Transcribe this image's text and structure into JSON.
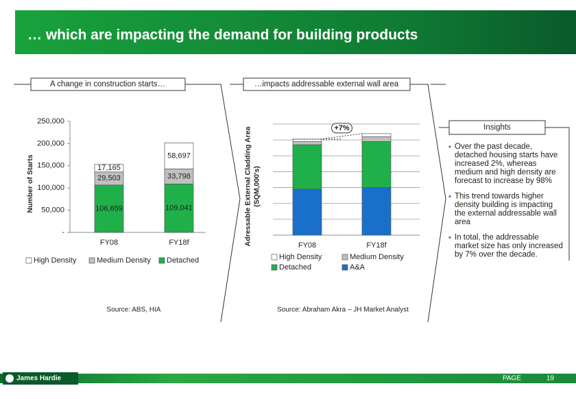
{
  "title": "… which are impacting the demand for building products",
  "panels": [
    "A change in construction starts…",
    "…impacts addressable external wall area"
  ],
  "sources": [
    "Source: ABS, HIA",
    "Source: Abraham Akra – JH Market Analyst"
  ],
  "insights": {
    "title": "Insights",
    "bullets": [
      [
        "Over the past decade,",
        "detached housing starts have",
        "increased 2%, whereas",
        "medium and high density are",
        "forecast to increase by 98%"
      ],
      [
        "This trend towards higher",
        "density building is impacting",
        "the external addressable wall",
        "area"
      ],
      [
        "In total, the addressable",
        "market size has only increased",
        "by 7% over the decade."
      ]
    ]
  },
  "footer": {
    "brand": "James Hardie",
    "page_label": "PAGE",
    "page_number": 19
  },
  "chart_data": [
    {
      "type": "bar",
      "stacked": true,
      "ylabel": [
        "Number of Starts"
      ],
      "categories": [
        "FY08",
        "FY18f"
      ],
      "series": [
        {
          "name": "High Density",
          "color": "#ffffff",
          "values": [
            17165,
            58697
          ],
          "value_labels": [
            "17,165",
            "58,697"
          ]
        },
        {
          "name": "Medium Density",
          "color": "#c0c0c0",
          "values": [
            29503,
            33798
          ],
          "value_labels": [
            "29,503",
            "33,798"
          ]
        },
        {
          "name": "Detached",
          "color": "#1fb04a",
          "values": [
            106659,
            109041
          ],
          "value_labels": [
            "106,659",
            "109,041"
          ]
        }
      ],
      "ylim": [
        0,
        250000
      ],
      "yticks": [
        {
          "value": 0,
          "label": "-"
        },
        {
          "value": 50000,
          "label": "50,000"
        },
        {
          "value": 100000,
          "label": "100,000"
        },
        {
          "value": 150000,
          "label": "150,000"
        },
        {
          "value": 200000,
          "label": "200,000"
        },
        {
          "value": 250000,
          "label": "250,000"
        }
      ],
      "grid": false
    },
    {
      "type": "bar",
      "stacked": true,
      "ylabel": [
        "Adressable External Cladding Area",
        "(SQM,000's)"
      ],
      "categories": [
        "FY08",
        "FY18f"
      ],
      "series": [
        {
          "name": "High Density",
          "color": "#ffffff",
          "values": [
            0.15,
            0.2
          ]
        },
        {
          "name": "Medium Density",
          "color": "#c0c0c0",
          "values": [
            0.2,
            0.3
          ]
        },
        {
          "name": "Detached",
          "color": "#1fb04a",
          "values": [
            2.8,
            2.9
          ]
        },
        {
          "name": "A&A",
          "color": "#1a6fcb",
          "values": [
            2.9,
            3.0
          ]
        }
      ],
      "ylim": [
        0,
        7
      ],
      "yticks": [
        0,
        1,
        2,
        3,
        4,
        5,
        6,
        7
      ],
      "grid": true,
      "tick_labels": false,
      "annotation": "+7%"
    }
  ]
}
